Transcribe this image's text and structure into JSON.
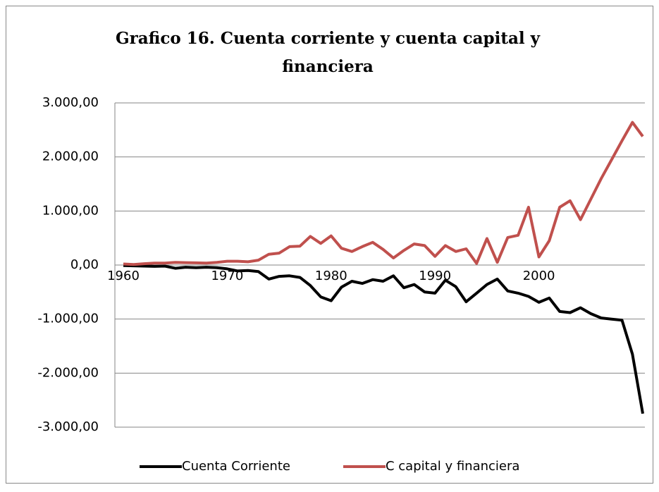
{
  "chart_data": {
    "type": "line",
    "title": "Grafico 16. Cuenta corriente y cuenta capital y financiera",
    "title_lines": [
      "Grafico 16. Cuenta corriente y cuenta capital y",
      "financiera"
    ],
    "x": [
      1960,
      1961,
      1962,
      1963,
      1964,
      1965,
      1966,
      1967,
      1968,
      1969,
      1970,
      1971,
      1972,
      1973,
      1974,
      1975,
      1976,
      1977,
      1978,
      1979,
      1980,
      1981,
      1982,
      1983,
      1984,
      1985,
      1986,
      1987,
      1988,
      1989,
      1990,
      1991,
      1992,
      1993,
      1994,
      1995,
      1996,
      1997,
      1998,
      1999,
      2000,
      2001,
      2002,
      2003,
      2004,
      2005,
      2006,
      2007,
      2008,
      2009,
      2010
    ],
    "series": [
      {
        "name": "Cuenta Corriente",
        "color": "#000000",
        "values": [
          -10,
          -15,
          -20,
          -25,
          -20,
          -60,
          -40,
          -50,
          -40,
          -50,
          -70,
          -110,
          -100,
          -120,
          -260,
          -210,
          -200,
          -230,
          -380,
          -590,
          -660,
          -410,
          -300,
          -340,
          -270,
          -300,
          -200,
          -420,
          -360,
          -500,
          -520,
          -280,
          -400,
          -680,
          -520,
          -360,
          -260,
          -480,
          -520,
          -580,
          -690,
          -610,
          -860,
          -880,
          -790,
          -900,
          -980,
          -1000,
          -1020,
          -1650,
          -2750
        ]
      },
      {
        "name": "C capital y financiera",
        "color": "#c0504d",
        "values": [
          20,
          10,
          25,
          35,
          35,
          50,
          45,
          40,
          35,
          50,
          70,
          70,
          60,
          90,
          200,
          220,
          340,
          350,
          530,
          400,
          540,
          310,
          250,
          340,
          420,
          290,
          130,
          270,
          390,
          360,
          160,
          360,
          250,
          300,
          30,
          490,
          50,
          510,
          550,
          1070,
          150,
          450,
          1070,
          1190,
          840,
          1220,
          1600,
          1950,
          2300,
          2640,
          2380
        ]
      }
    ],
    "xlim": [
      1960,
      2010
    ],
    "xticks": [
      1960,
      1970,
      1980,
      1990,
      2000
    ],
    "ylim": [
      -3000,
      3000
    ],
    "yticks": [
      {
        "value": -3000,
        "label": "-3.000,00"
      },
      {
        "value": -2000,
        "label": "-2.000,00"
      },
      {
        "value": -1000,
        "label": "-1.000,00"
      },
      {
        "value": 0,
        "label": "0,00"
      },
      {
        "value": 1000,
        "label": "1.000,00"
      },
      {
        "value": 2000,
        "label": "2.000,00"
      },
      {
        "value": 3000,
        "label": "3.000,00"
      }
    ],
    "grid": true,
    "legend": "bottom"
  }
}
